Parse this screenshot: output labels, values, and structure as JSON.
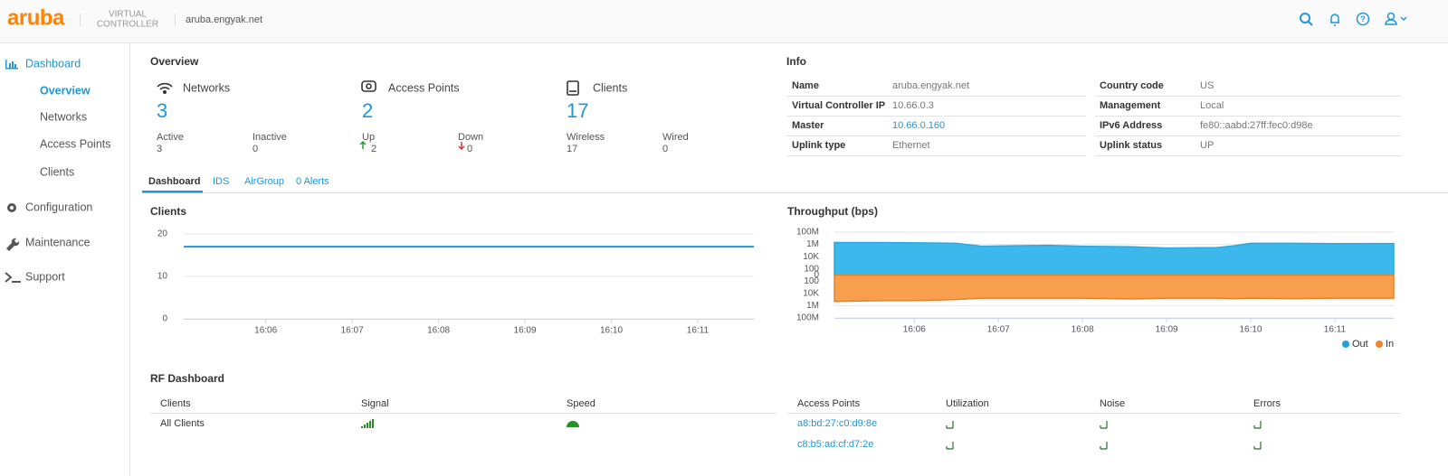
{
  "header": {
    "logo": "aruba",
    "product": [
      "VIRTUAL",
      "CONTROLLER"
    ],
    "host": "aruba.engyak.net"
  },
  "sidebar": {
    "sections": [
      "Dashboard",
      "Configuration",
      "Maintenance",
      "Support"
    ],
    "dashboard_items": [
      "Overview",
      "Networks",
      "Access Points",
      "Clients"
    ]
  },
  "overview": {
    "title": "Overview",
    "cards": [
      {
        "label": "Networks",
        "count": 3,
        "stats": [
          {
            "label": "Active",
            "value": 3
          },
          {
            "label": "Inactive",
            "value": 0
          }
        ]
      },
      {
        "label": "Access Points",
        "count": 2,
        "stats": [
          {
            "label": "Up",
            "value": 2
          },
          {
            "label": "Down",
            "value": 0
          }
        ]
      },
      {
        "label": "Clients",
        "count": 17,
        "stats": [
          {
            "label": "Wireless",
            "value": 17
          },
          {
            "label": "Wired",
            "value": 0
          }
        ]
      }
    ]
  },
  "info": {
    "title": "Info",
    "rows": [
      [
        "Name",
        "aruba.engyak.net",
        "Country code",
        "US"
      ],
      [
        "Virtual Controller IP",
        "10.66.0.3",
        "Management",
        "Local"
      ],
      [
        "Master",
        "10.66.0.160",
        "IPv6 Address",
        "fe80::aabd:27ff:fec0:d98e"
      ],
      [
        "Uplink type",
        "Ethernet",
        "Uplink status",
        "UP"
      ]
    ]
  },
  "tabs": [
    "Dashboard",
    "IDS",
    "AirGroup",
    "0 Alerts"
  ],
  "clients_chart": {
    "type": "line",
    "title": "Clients",
    "x": [
      965.05,
      971.65
    ],
    "series": [
      {
        "color": "#2196d8",
        "values": [
          17,
          17
        ]
      }
    ],
    "xlim": [
      965.05,
      971.65
    ],
    "xticks": [
      {
        "value": 966,
        "label": "16:06"
      },
      {
        "value": 967,
        "label": "16:07"
      },
      {
        "value": 968,
        "label": "16:08"
      },
      {
        "value": 969,
        "label": "16:09"
      },
      {
        "value": 970,
        "label": "16:10"
      },
      {
        "value": 971,
        "label": "16:11"
      }
    ],
    "ylim": [
      0,
      20
    ],
    "yticks": [
      0,
      10,
      20
    ],
    "grid": true
  },
  "throughput_chart": {
    "type": "area",
    "title": "Throughput (bps)",
    "scale": "symlog",
    "x": [
      965.05,
      965.6,
      966.0,
      966.5,
      966.8,
      967.2,
      967.6,
      968.0,
      968.6,
      969.0,
      969.6,
      969.8,
      970.0,
      970.5,
      971.0,
      971.7
    ],
    "series": [
      {
        "name": "Out",
        "color": "#3db8ec",
        "values": [
          2000000,
          2000000,
          1800000,
          1500000,
          500000,
          600000,
          700000,
          500000,
          400000,
          250000,
          300000,
          600000,
          1500000,
          1500000,
          1300000,
          1400000
        ]
      },
      {
        "name": "In",
        "color": "#f79f4c",
        "values": [
          -200000,
          -150000,
          -150000,
          -100000,
          -60000,
          -60000,
          -60000,
          -60000,
          -80000,
          -60000,
          -60000,
          -70000,
          -60000,
          -70000,
          -60000,
          -60000
        ]
      }
    ],
    "xlim": [
      965.05,
      971.7
    ],
    "xticks": [
      {
        "value": 966,
        "label": "16:06"
      },
      {
        "value": 967,
        "label": "16:07"
      },
      {
        "value": 968,
        "label": "16:08"
      },
      {
        "value": 969,
        "label": "16:09"
      },
      {
        "value": 970,
        "label": "16:10"
      },
      {
        "value": 971,
        "label": "16:11"
      }
    ],
    "ylim": [
      -100000000,
      100000000
    ],
    "yticks": [
      {
        "value": 100000000,
        "label": "100M"
      },
      {
        "value": 1000000,
        "label": "1M"
      },
      {
        "value": 10000,
        "label": "10K"
      },
      100,
      0,
      {
        "value": -100,
        "label": "100"
      },
      {
        "value": -10000,
        "label": "10K"
      },
      {
        "value": -1000000,
        "label": "1M"
      },
      {
        "value": -100000000,
        "label": "100M"
      }
    ],
    "grid": true,
    "legend": "bottom-right"
  },
  "rf": {
    "title": "RF Dashboard",
    "clients_table": {
      "headers": [
        "Clients",
        "Signal",
        "Speed"
      ],
      "rows": [
        [
          "All Clients"
        ]
      ]
    },
    "ap_table": {
      "headers": [
        "Access Points",
        "Utilization",
        "Noise",
        "Errors"
      ],
      "rows": [
        [
          "a8:bd:27:c0:d9:8e"
        ],
        [
          "c8:b5:ad:cf:d7:2e"
        ]
      ]
    }
  }
}
